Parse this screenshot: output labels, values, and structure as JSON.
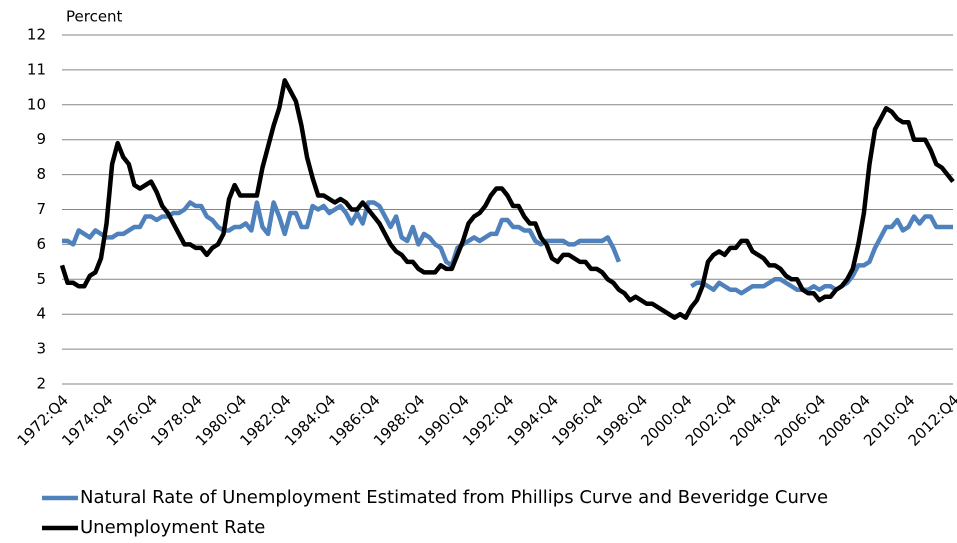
{
  "chart_data": {
    "type": "line",
    "y_label": "Percent",
    "categories": [
      "1972:Q4",
      null,
      null,
      null,
      null,
      null,
      null,
      null,
      "1974:Q4",
      null,
      null,
      null,
      null,
      null,
      null,
      null,
      "1976:Q4",
      null,
      null,
      null,
      null,
      null,
      null,
      null,
      "1978:Q4",
      null,
      null,
      null,
      null,
      null,
      null,
      null,
      "1980:Q4",
      null,
      null,
      null,
      null,
      null,
      null,
      null,
      "1982:Q4",
      null,
      null,
      null,
      null,
      null,
      null,
      null,
      "1984:Q4",
      null,
      null,
      null,
      null,
      null,
      null,
      null,
      "1986:Q4",
      null,
      null,
      null,
      null,
      null,
      null,
      null,
      "1988:Q4",
      null,
      null,
      null,
      null,
      null,
      null,
      null,
      "1990:Q4",
      null,
      null,
      null,
      null,
      null,
      null,
      null,
      "1992:Q4",
      null,
      null,
      null,
      null,
      null,
      null,
      null,
      "1994:Q4",
      null,
      null,
      null,
      null,
      null,
      null,
      null,
      "1996:Q4",
      null,
      null,
      null,
      null,
      null,
      null,
      null,
      "1998:Q4",
      null,
      null,
      null,
      null,
      null,
      null,
      null,
      "2000:Q4",
      null,
      null,
      null,
      null,
      null,
      null,
      null,
      "2002:Q4",
      null,
      null,
      null,
      null,
      null,
      null,
      null,
      "2004:Q4",
      null,
      null,
      null,
      null,
      null,
      null,
      null,
      "2006:Q4",
      null,
      null,
      null,
      null,
      null,
      null,
      null,
      "2008:Q4",
      null,
      null,
      null,
      null,
      null,
      null,
      null,
      "2010:Q4",
      null,
      null,
      null,
      null,
      null,
      null,
      null,
      "2012:Q4"
    ],
    "series": [
      {
        "name": "Natural Rate of Unemployment Estimated from Phillips Curve and Beveridge Curve",
        "color": "#4f81bd",
        "values": [
          6.1,
          6.1,
          6.0,
          6.4,
          6.3,
          6.2,
          6.4,
          6.3,
          6.2,
          6.2,
          6.3,
          6.3,
          6.4,
          6.5,
          6.5,
          6.8,
          6.8,
          6.7,
          6.8,
          6.8,
          6.9,
          6.9,
          7.0,
          7.2,
          7.1,
          7.1,
          6.8,
          6.7,
          6.5,
          6.4,
          6.4,
          6.5,
          6.5,
          6.6,
          6.4,
          7.2,
          6.5,
          6.3,
          7.2,
          6.8,
          6.3,
          6.9,
          6.9,
          6.5,
          6.5,
          7.1,
          7.0,
          7.1,
          6.9,
          7.0,
          7.1,
          6.9,
          6.6,
          6.9,
          6.6,
          7.2,
          7.2,
          7.1,
          6.8,
          6.5,
          6.8,
          6.2,
          6.1,
          6.5,
          6.0,
          6.3,
          6.2,
          6.0,
          5.9,
          5.5,
          5.4,
          5.9,
          6.0,
          6.1,
          6.2,
          6.1,
          6.2,
          6.3,
          6.3,
          6.7,
          6.7,
          6.5,
          6.5,
          6.4,
          6.4,
          6.1,
          6.0,
          6.1,
          6.1,
          6.1,
          6.1,
          6.0,
          6.0,
          6.1,
          6.1,
          6.1,
          6.1,
          6.1,
          6.2,
          5.9,
          5.5,
          null,
          null,
          null,
          null,
          null,
          null,
          null,
          null,
          null,
          null,
          null,
          null,
          4.8,
          4.9,
          4.9,
          4.8,
          4.7,
          4.9,
          4.8,
          4.7,
          4.7,
          4.6,
          4.7,
          4.8,
          4.8,
          4.8,
          4.9,
          5.0,
          5.0,
          4.9,
          4.8,
          4.7,
          4.7,
          4.7,
          4.8,
          4.7,
          4.8,
          4.8,
          4.7,
          4.8,
          4.9,
          5.1,
          5.4,
          5.4,
          5.5,
          5.9,
          6.2,
          6.5,
          6.5,
          6.7,
          6.4,
          6.5,
          6.8,
          6.6,
          6.8,
          6.8,
          6.5,
          6.5,
          6.5,
          6.5
        ]
      },
      {
        "name": "Unemployment Rate",
        "color": "#000000",
        "values": [
          5.4,
          4.9,
          4.9,
          4.8,
          4.8,
          5.1,
          5.2,
          5.6,
          6.6,
          8.3,
          8.9,
          8.5,
          8.3,
          7.7,
          7.6,
          7.7,
          7.8,
          7.5,
          7.1,
          6.9,
          6.6,
          6.3,
          6.0,
          6.0,
          5.9,
          5.9,
          5.7,
          5.9,
          6.0,
          6.3,
          7.3,
          7.7,
          7.4,
          7.4,
          7.4,
          7.4,
          8.2,
          8.8,
          9.4,
          9.9,
          10.7,
          10.4,
          10.1,
          9.4,
          8.5,
          7.9,
          7.4,
          7.4,
          7.3,
          7.2,
          7.3,
          7.2,
          7.0,
          7.0,
          7.2,
          7.0,
          6.8,
          6.6,
          6.3,
          6.0,
          5.8,
          5.7,
          5.5,
          5.5,
          5.3,
          5.2,
          5.2,
          5.2,
          5.4,
          5.3,
          5.3,
          5.7,
          6.1,
          6.6,
          6.8,
          6.9,
          7.1,
          7.4,
          7.6,
          7.6,
          7.4,
          7.1,
          7.1,
          6.8,
          6.6,
          6.6,
          6.2,
          6.0,
          5.6,
          5.5,
          5.7,
          5.7,
          5.6,
          5.5,
          5.5,
          5.3,
          5.3,
          5.2,
          5.0,
          4.9,
          4.7,
          4.6,
          4.4,
          4.5,
          4.4,
          4.3,
          4.3,
          4.2,
          4.1,
          4.0,
          3.9,
          4.0,
          3.9,
          4.2,
          4.4,
          4.8,
          5.5,
          5.7,
          5.8,
          5.7,
          5.9,
          5.9,
          6.1,
          6.1,
          5.8,
          5.7,
          5.6,
          5.4,
          5.4,
          5.3,
          5.1,
          5.0,
          5.0,
          4.7,
          4.6,
          4.6,
          4.4,
          4.5,
          4.5,
          4.7,
          4.8,
          5.0,
          5.3,
          6.0,
          6.9,
          8.3,
          9.3,
          9.6,
          9.9,
          9.8,
          9.6,
          9.5,
          9.5,
          9.0,
          9.0,
          9.0,
          8.7,
          8.3,
          8.2,
          8.0,
          7.8
        ]
      }
    ],
    "ylim": [
      2,
      12
    ],
    "yticks": [
      2,
      3,
      4,
      5,
      6,
      7,
      8,
      9,
      10,
      11,
      12
    ],
    "grid": true
  }
}
